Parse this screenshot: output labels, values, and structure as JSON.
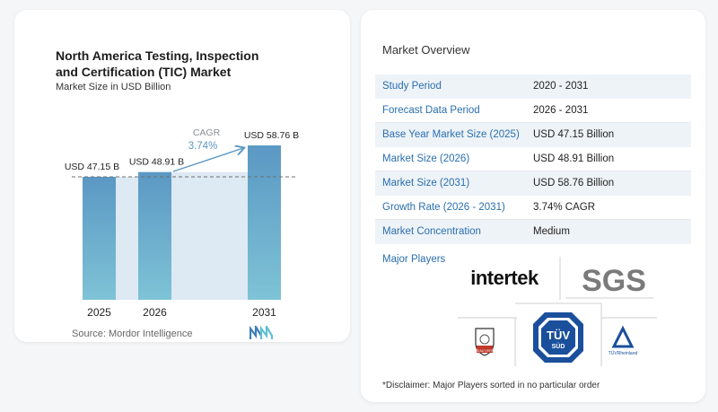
{
  "chart": {
    "title_line1": "North America Testing, Inspection",
    "title_line2": "and Certification (TIC) Market",
    "subtitle": "Market Size in USD Billion",
    "source": "Source:  Mordor Intelligence",
    "cagr_label": "CAGR",
    "cagr_value": "3.74%"
  },
  "chart_data": {
    "type": "bar",
    "categories": [
      "2025",
      "2026",
      "2031"
    ],
    "values": [
      47.15,
      48.91,
      58.76
    ],
    "value_labels": [
      "USD 47.15 B",
      "USD 48.91 B",
      "USD 58.76 B"
    ],
    "title": "North America Testing, Inspection and Certification (TIC) Market",
    "subtitle": "Market Size in USD Billion",
    "xlabel": "",
    "ylabel": "",
    "grid": false,
    "colors": {
      "bar_top": "#5b98c4",
      "bar_bottom": "#7ec3d6",
      "band": "#dde9f3"
    }
  },
  "overview": {
    "title": "Market Overview",
    "rows": [
      {
        "key": "Study Period",
        "value": "2020 - 2031"
      },
      {
        "key": "Forecast Data Period",
        "value": "2026 - 2031"
      },
      {
        "key": "Base Year Market Size (2025)",
        "value": "USD 47.15 Billion"
      },
      {
        "key": "Market Size (2026)",
        "value": "USD 48.91 Billion"
      },
      {
        "key": "Market Size (2031)",
        "value": "USD 58.76 Billion"
      },
      {
        "key": "Growth Rate (2026 - 2031)",
        "value": "3.74% CAGR"
      },
      {
        "key": "Market Concentration",
        "value": "Medium"
      }
    ],
    "major_players_label": "Major Players",
    "disclaimer": "*Disclaimer: Major Players sorted in no particular order"
  },
  "players": {
    "intertek": "intertek",
    "sgs": "SGS",
    "bureau_veritas": "BUREAU VERITAS",
    "tuv_sud_top": "TÜV",
    "tuv_sud_bottom": "SÜD",
    "tuv_rheinland": "TÜVRheinland"
  }
}
